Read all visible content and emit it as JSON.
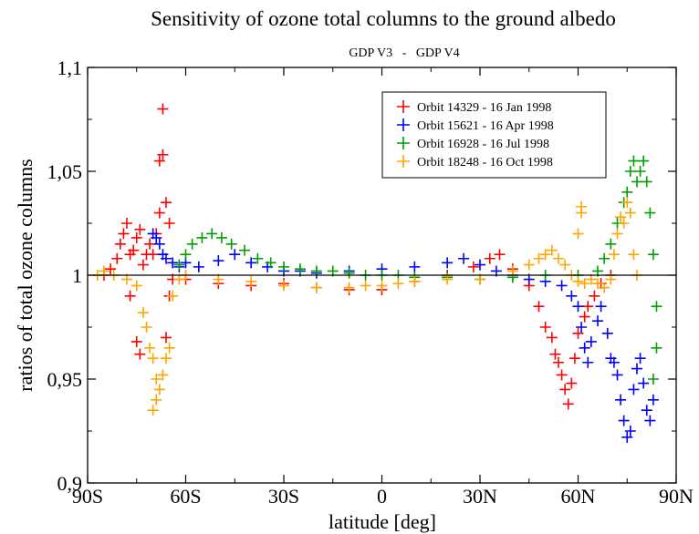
{
  "chart_data": {
    "type": "scatter",
    "title": "Sensitivity of ozone total columns to the ground albedo",
    "subtitle": "GDP V3   -   GDP V4",
    "xlabel": "latitude [deg]",
    "ylabel": "ratios of total ozone columns",
    "xlim": [
      -90,
      90
    ],
    "ylim": [
      0.9,
      1.1
    ],
    "x_ticks": [
      {
        "value": -90,
        "label": "90S"
      },
      {
        "value": -60,
        "label": "60S"
      },
      {
        "value": -30,
        "label": "30S"
      },
      {
        "value": 0,
        "label": "0"
      },
      {
        "value": 30,
        "label": "30N"
      },
      {
        "value": 60,
        "label": "60N"
      },
      {
        "value": 90,
        "label": "90N"
      }
    ],
    "y_ticks": [
      {
        "value": 0.9,
        "label": "0,9"
      },
      {
        "value": 0.95,
        "label": "0,95"
      },
      {
        "value": 1.0,
        "label": "1"
      },
      {
        "value": 1.05,
        "label": "1,05"
      },
      {
        "value": 1.1,
        "label": "1,1"
      }
    ],
    "reference_line": 1.0,
    "grid": false,
    "legend_position": "top-right",
    "marker": "+",
    "series": [
      {
        "name": "Orbit 14329 - 16 Jan 1998",
        "color": "#ff0000",
        "points": [
          [
            -85,
            1.0
          ],
          [
            -83,
            1.003
          ],
          [
            -81,
            1.008
          ],
          [
            -80,
            1.015
          ],
          [
            -79,
            1.02
          ],
          [
            -78,
            1.025
          ],
          [
            -77,
            1.01
          ],
          [
            -77,
            0.99
          ],
          [
            -76,
            1.012
          ],
          [
            -75,
            1.018
          ],
          [
            -75,
            0.968
          ],
          [
            -74,
            1.022
          ],
          [
            -74,
            0.962
          ],
          [
            -73,
            1.005
          ],
          [
            -72,
            1.01
          ],
          [
            -71,
            1.015
          ],
          [
            -70,
            1.01
          ],
          [
            -69,
            1.02
          ],
          [
            -68,
            1.03
          ],
          [
            -68,
            1.055
          ],
          [
            -67,
            1.058
          ],
          [
            -67,
            1.08
          ],
          [
            -66,
            1.035
          ],
          [
            -66,
            0.97
          ],
          [
            -65,
            1.025
          ],
          [
            -65,
            0.99
          ],
          [
            -64,
            0.998
          ],
          [
            -60,
            0.998
          ],
          [
            -50,
            0.996
          ],
          [
            -40,
            0.995
          ],
          [
            -30,
            0.996
          ],
          [
            -20,
            0.994
          ],
          [
            -10,
            0.993
          ],
          [
            0,
            0.993
          ],
          [
            10,
            0.997
          ],
          [
            20,
            1.0
          ],
          [
            28,
            1.004
          ],
          [
            33,
            1.008
          ],
          [
            36,
            1.01
          ],
          [
            40,
            1.003
          ],
          [
            45,
            0.995
          ],
          [
            48,
            0.985
          ],
          [
            50,
            0.975
          ],
          [
            52,
            0.97
          ],
          [
            53,
            0.962
          ],
          [
            54,
            0.958
          ],
          [
            55,
            0.952
          ],
          [
            56,
            0.945
          ],
          [
            57,
            0.938
          ],
          [
            58,
            0.948
          ],
          [
            59,
            0.96
          ],
          [
            60,
            0.972
          ],
          [
            62,
            0.98
          ],
          [
            63,
            0.985
          ],
          [
            65,
            0.99
          ],
          [
            67,
            0.996
          ],
          [
            70,
            1.0
          ]
        ]
      },
      {
        "name": "Orbit 15621 - 16 Apr 1998",
        "color": "#0000ff",
        "points": [
          [
            -70,
            1.02
          ],
          [
            -69,
            1.018
          ],
          [
            -68,
            1.015
          ],
          [
            -67,
            1.01
          ],
          [
            -66,
            1.008
          ],
          [
            -64,
            1.006
          ],
          [
            -62,
            1.004
          ],
          [
            -60,
            1.006
          ],
          [
            -56,
            1.004
          ],
          [
            -50,
            1.007
          ],
          [
            -45,
            1.01
          ],
          [
            -40,
            1.006
          ],
          [
            -35,
            1.004
          ],
          [
            -30,
            1.002
          ],
          [
            -25,
            1.002
          ],
          [
            -20,
            1.001
          ],
          [
            -10,
            1.002
          ],
          [
            0,
            1.003
          ],
          [
            10,
            1.004
          ],
          [
            20,
            1.006
          ],
          [
            25,
            1.008
          ],
          [
            30,
            1.005
          ],
          [
            35,
            1.002
          ],
          [
            40,
            1.0
          ],
          [
            45,
            0.998
          ],
          [
            50,
            0.997
          ],
          [
            55,
            0.995
          ],
          [
            58,
            0.99
          ],
          [
            60,
            0.985
          ],
          [
            61,
            0.975
          ],
          [
            62,
            0.965
          ],
          [
            63,
            0.958
          ],
          [
            64,
            0.968
          ],
          [
            66,
            0.978
          ],
          [
            67,
            0.985
          ],
          [
            69,
            0.972
          ],
          [
            70,
            0.96
          ],
          [
            71,
            0.958
          ],
          [
            72,
            0.952
          ],
          [
            73,
            0.94
          ],
          [
            74,
            0.93
          ],
          [
            75,
            0.922
          ],
          [
            76,
            0.925
          ],
          [
            77,
            0.945
          ],
          [
            78,
            0.955
          ],
          [
            79,
            0.96
          ],
          [
            80,
            0.948
          ],
          [
            81,
            0.935
          ],
          [
            82,
            0.93
          ],
          [
            83,
            0.94
          ]
        ]
      },
      {
        "name": "Orbit 16928 - 16 Jul 1998",
        "color": "#00a000",
        "points": [
          [
            -62,
            1.005
          ],
          [
            -60,
            1.01
          ],
          [
            -58,
            1.015
          ],
          [
            -55,
            1.018
          ],
          [
            -52,
            1.02
          ],
          [
            -49,
            1.018
          ],
          [
            -46,
            1.015
          ],
          [
            -42,
            1.012
          ],
          [
            -38,
            1.008
          ],
          [
            -34,
            1.006
          ],
          [
            -30,
            1.004
          ],
          [
            -25,
            1.003
          ],
          [
            -20,
            1.002
          ],
          [
            -15,
            1.002
          ],
          [
            -10,
            1.001
          ],
          [
            -5,
            1.0
          ],
          [
            0,
            1.0
          ],
          [
            5,
            1.0
          ],
          [
            10,
            0.999
          ],
          [
            20,
            0.999
          ],
          [
            30,
            0.998
          ],
          [
            40,
            0.999
          ],
          [
            50,
            1.0
          ],
          [
            60,
            1.0
          ],
          [
            66,
            1.002
          ],
          [
            68,
            1.008
          ],
          [
            70,
            1.015
          ],
          [
            72,
            1.025
          ],
          [
            74,
            1.035
          ],
          [
            75,
            1.04
          ],
          [
            76,
            1.05
          ],
          [
            77,
            1.055
          ],
          [
            78,
            1.045
          ],
          [
            79,
            1.05
          ],
          [
            80,
            1.055
          ],
          [
            81,
            1.045
          ],
          [
            82,
            1.03
          ],
          [
            83,
            1.01
          ],
          [
            84,
            0.985
          ],
          [
            84,
            0.965
          ],
          [
            83,
            0.95
          ]
        ]
      },
      {
        "name": "Orbit 18248 - 16 Oct 1998",
        "color": "#ffa500",
        "points": [
          [
            -87,
            1.0
          ],
          [
            -85,
            1.002
          ],
          [
            -82,
            1.0
          ],
          [
            -78,
            0.998
          ],
          [
            -75,
            0.995
          ],
          [
            -73,
            0.982
          ],
          [
            -72,
            0.975
          ],
          [
            -71,
            0.965
          ],
          [
            -70,
            0.96
          ],
          [
            -70,
            0.935
          ],
          [
            -69,
            0.94
          ],
          [
            -69,
            0.95
          ],
          [
            -68,
            0.945
          ],
          [
            -67,
            0.952
          ],
          [
            -66,
            0.96
          ],
          [
            -65,
            0.965
          ],
          [
            -64,
            0.99
          ],
          [
            -62,
            0.998
          ],
          [
            -60,
            1.0
          ],
          [
            -50,
            0.998
          ],
          [
            -40,
            0.997
          ],
          [
            -30,
            0.995
          ],
          [
            -20,
            0.994
          ],
          [
            -10,
            0.994
          ],
          [
            -5,
            0.995
          ],
          [
            0,
            0.995
          ],
          [
            5,
            0.996
          ],
          [
            10,
            0.997
          ],
          [
            20,
            0.998
          ],
          [
            30,
            0.998
          ],
          [
            40,
            1.002
          ],
          [
            45,
            1.005
          ],
          [
            48,
            1.008
          ],
          [
            50,
            1.01
          ],
          [
            52,
            1.012
          ],
          [
            54,
            1.008
          ],
          [
            56,
            1.005
          ],
          [
            58,
            1.0
          ],
          [
            60,
            0.997
          ],
          [
            62,
            0.996
          ],
          [
            64,
            0.998
          ],
          [
            66,
            0.996
          ],
          [
            68,
            0.994
          ],
          [
            70,
            0.998
          ],
          [
            71,
            1.01
          ],
          [
            72,
            1.02
          ],
          [
            73,
            1.028
          ],
          [
            74,
            1.025
          ],
          [
            75,
            1.035
          ],
          [
            76,
            1.03
          ],
          [
            77,
            1.01
          ],
          [
            78,
            1.0
          ],
          [
            60,
            1.02
          ],
          [
            61,
            1.03
          ],
          [
            61,
            1.033
          ]
        ]
      }
    ]
  }
}
